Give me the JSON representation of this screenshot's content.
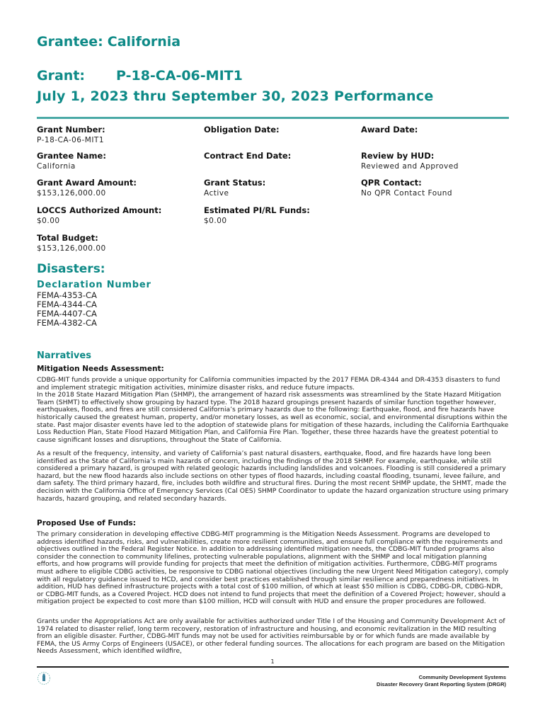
{
  "header": {
    "grantee_label": "Grantee:",
    "grantee_value": "California",
    "grant_label": "Grant:",
    "grant_value": "P-18-CA-06-MIT1",
    "period": "July 1, 2023 thru September 30, 2023 Performance",
    "accent_color": "#0e8a87"
  },
  "fields": [
    {
      "label": "Grant Number:",
      "value": "P-18-CA-06-MIT1"
    },
    {
      "label": "Obligation Date:",
      "value": ""
    },
    {
      "label": "Award Date:",
      "value": ""
    },
    {
      "label": "Grantee Name:",
      "value": "California"
    },
    {
      "label": "Contract End Date:",
      "value": ""
    },
    {
      "label": "Review by HUD:",
      "value": "Reviewed and Approved"
    },
    {
      "label": "Grant Award Amount:",
      "value": "$153,126,000.00"
    },
    {
      "label": "Grant Status:",
      "value": "Active"
    },
    {
      "label": "QPR Contact:",
      "value": "No QPR Contact Found"
    },
    {
      "label": "LOCCS Authorized Amount:",
      "value": "$0.00"
    },
    {
      "label": "Estimated PI/RL Funds:",
      "value": "$0.00"
    },
    {
      "label": "Total Budget:",
      "value": "$153,126,000.00"
    }
  ],
  "disasters": {
    "heading": "Disasters:",
    "column_header": "Declaration Number",
    "items": [
      "FEMA-4353-CA",
      "FEMA-4344-CA",
      "FEMA-4407-CA",
      "FEMA-4382-CA"
    ]
  },
  "narratives": {
    "heading": "Narratives",
    "mitigation_heading": "Mitigation Needs Assessment:",
    "mitigation_p1": "CDBG-MIT funds provide a unique opportunity for California communities impacted by the 2017 FEMA DR-4344 and DR-4353 disasters to fund and implement strategic mitigation activities, minimize disaster risks, and reduce future impacts.",
    "mitigation_p2": "In the 2018 State Hazard Mitigation Plan (SHMP), the arrangement of hazard risk assessments was streamlined by the State Hazard Mitigation Team (SHMT) to effectively show grouping by hazard type. The 2018 hazard groupings present hazards of similar function together however, earthquakes, floods, and fires are still considered California’s primary hazards due to the following: Earthquake, flood, and fire hazards have historically caused the greatest human, property, and/or monetary losses, as well as economic, social, and environmental disruptions within the state. Past major disaster events have led to the adoption of statewide plans for mitigation of these hazards, including the California Earthquake Loss Reduction Plan, State Flood Hazard Mitigation Plan, and California Fire Plan. Together, these three hazards have the greatest potential to cause significant losses and disruptions, throughout the State of California.",
    "mitigation_p3": "As a result of the frequency, intensity, and variety of California’s past natural disasters, earthquake, flood, and fire hazards have long been identified as the State of California’s main hazards of concern, including the findings of the 2018 SHMP. For example, earthquake, while still considered a primary hazard, is grouped with related geologic hazards including landslides and volcanoes. Flooding is still considered a primary hazard, but the new flood hazards also include sections on other types of flood hazards, including coastal flooding, tsunami, levee failure, and dam safety. The third primary hazard, fire, includes both wildfire and structural fires. During the most recent SHMP update, the SHMT, made the decision with the California Office of Emergency Services (Cal OES) SHMP Coordinator to update the hazard organization structure using primary hazards, hazard grouping, and related secondary hazards.",
    "funds_heading": "Proposed Use of Funds:",
    "funds_p1": "The primary consideration in developing effective CDBG-MIT programming is the Mitigation Needs Assessment. Programs are developed to address identified hazards, risks, and vulnerabilities, create more resilient communities, and ensure full compliance with the requirements and objectives outlined in the Federal Register Notice. In addition to addressing identified mitigation needs, the CDBG-MIT funded programs also consider the connection to community lifelines, protecting vulnerable populations, alignment with the SHMP and local mitigation planning efforts, and how programs will provide funding for projects that meet the definition of mitigation activities. Furthermore, CDBG-MIT programs must adhere to eligible CDBG activities, be responsive to CDBG national objectives (including the new Urgent Need Mitigation category), comply with all regulatory guidance issued to HCD, and consider best practices established through similar resilience and preparedness initiatives. In addition, HUD has defined infrastructure projects with a total cost of $100 million, of which at least $50 million is CDBG, CDBG-DR, CDBG-NDR, or CDBG-MIT funds, as a Covered Project. HCD does not intend to fund projects that meet the definition of a Covered Project; however, should a mitigation project be expected to cost more than $100 million, HCD will consult with HUD and ensure the proper procedures are followed.",
    "funds_p2": "Grants under the Appropriations Act are only available for activities authorized under Title I of the Housing and Community Development Act of 1974 related to disaster relief, long term recovery, restoration of infrastructure and housing, and economic revitalization in the MID resulting from an eligible disaster. Further, CDBG-MIT funds may not be used for activities reimbursable by or for which funds are made available by FEMA, the US Army Corps of Engineers (USACE), or other federal funding sources. The allocations for each program are based on the Mitigation Needs Assessment, which identified wildfire,"
  },
  "footer": {
    "page_number": "1",
    "line1": "Community Development Systems",
    "line2": "Disaster Recovery Grant Reporting System (DRGR)",
    "logo_icon": "hud-seal-icon"
  }
}
